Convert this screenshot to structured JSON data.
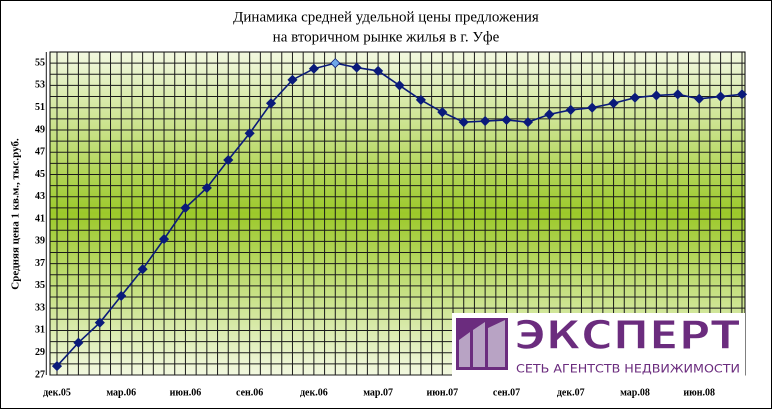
{
  "chart_data": {
    "type": "line",
    "title": [
      "Динамика средней удельной цены предложения",
      "на вторичном рынке жилья в г. Уфе"
    ],
    "y_label": "Средняя цена 1 кв.м., тыс.руб.",
    "categories": [
      "дек.05",
      null,
      null,
      "мар.06",
      null,
      null,
      "июн.06",
      null,
      null,
      "сен.06",
      null,
      null,
      "дек.06",
      null,
      null,
      "мар.07",
      null,
      null,
      "июн.07",
      null,
      null,
      "сен.07",
      null,
      null,
      "дек.07",
      null,
      null,
      "мар.08",
      null,
      null,
      "июн.08",
      null,
      null
    ],
    "series": [
      {
        "color": "#0a1a7a",
        "values": [
          27.8,
          29.9,
          31.7,
          34.1,
          36.5,
          39.2,
          42,
          43.8,
          46.3,
          48.7,
          51.4,
          53.5,
          54.5,
          55,
          54.6,
          54.3,
          53,
          51.7,
          50.6,
          49.7,
          49.8,
          49.9,
          49.7,
          50.4,
          50.8,
          51,
          51.4,
          51.9,
          52.1,
          52.2,
          51.8,
          52,
          52.2
        ]
      }
    ],
    "highlight": {
      "index": 13,
      "color": "#6fa8e8"
    },
    "ylim": [
      27,
      56
    ],
    "yticks": [
      27,
      29,
      31,
      33,
      35,
      37,
      39,
      41,
      43,
      45,
      47,
      49,
      51,
      53,
      55
    ],
    "grid": true,
    "logo": {
      "name": "ЭКСПЕРТ",
      "subtitle": "СЕТЬ АГЕНТСТВ НЕДВИЖИМОСТИ"
    }
  }
}
